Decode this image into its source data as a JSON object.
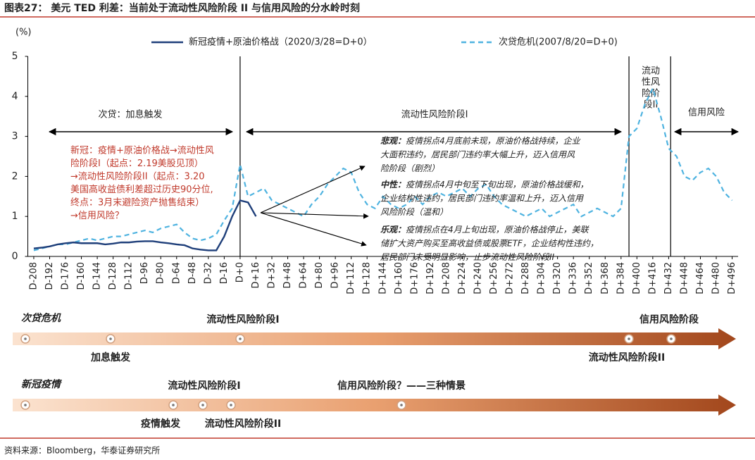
{
  "header": {
    "title": "图表27： 美元 TED 利差：当前处于流动性风险阶段 II 与信用风险的分水岭时刻"
  },
  "chart_data": {
    "type": "line",
    "y_axis_label": "(%)",
    "xlim": [
      -214,
      502
    ],
    "ylim": [
      0,
      5
    ],
    "yticks": [
      0,
      1,
      2,
      3,
      4,
      5
    ],
    "xticks": [
      {
        "value": -208,
        "label": "D-208"
      },
      {
        "value": -192,
        "label": "D-192"
      },
      {
        "value": -176,
        "label": "D-176"
      },
      {
        "value": -160,
        "label": "D-160"
      },
      {
        "value": -144,
        "label": "D-144"
      },
      {
        "value": -128,
        "label": "D-128"
      },
      {
        "value": -112,
        "label": "D-112"
      },
      {
        "value": -96,
        "label": "D-96"
      },
      {
        "value": -80,
        "label": "D-80"
      },
      {
        "value": -64,
        "label": "D-64"
      },
      {
        "value": -48,
        "label": "D-48"
      },
      {
        "value": -32,
        "label": "D-32"
      },
      {
        "value": -16,
        "label": "D-16"
      },
      {
        "value": 0,
        "label": "D+0"
      },
      {
        "value": 16,
        "label": "D+16"
      },
      {
        "value": 32,
        "label": "D+32"
      },
      {
        "value": 48,
        "label": "D+48"
      },
      {
        "value": 64,
        "label": "D+64"
      },
      {
        "value": 80,
        "label": "D+80"
      },
      {
        "value": 96,
        "label": "D+96"
      },
      {
        "value": 112,
        "label": "D+112"
      },
      {
        "value": 128,
        "label": "D+128"
      },
      {
        "value": 144,
        "label": "D+144"
      },
      {
        "value": 160,
        "label": "D+160"
      },
      {
        "value": 176,
        "label": "D+176"
      },
      {
        "value": 192,
        "label": "D+192"
      },
      {
        "value": 208,
        "label": "D+208"
      },
      {
        "value": 224,
        "label": "D+224"
      },
      {
        "value": 240,
        "label": "D+240"
      },
      {
        "value": 256,
        "label": "D+256"
      },
      {
        "value": 272,
        "label": "D+272"
      },
      {
        "value": 288,
        "label": "D+288"
      },
      {
        "value": 304,
        "label": "D+304"
      },
      {
        "value": 320,
        "label": "D+320"
      },
      {
        "value": 336,
        "label": "D+336"
      },
      {
        "value": 352,
        "label": "D+352"
      },
      {
        "value": 368,
        "label": "D+368"
      },
      {
        "value": 384,
        "label": "D+384"
      },
      {
        "value": 400,
        "label": "D+400"
      },
      {
        "value": 416,
        "label": "D+416"
      },
      {
        "value": 432,
        "label": "D+432"
      },
      {
        "value": 448,
        "label": "D+448"
      },
      {
        "value": 464,
        "label": "D+464"
      },
      {
        "value": 480,
        "label": "D+480"
      },
      {
        "value": 496,
        "label": "D+496"
      }
    ],
    "series": [
      {
        "name": "新冠疫情+原油价格战（2020/3/28=D+0）",
        "color": "#1f3f7a",
        "dashed": false,
        "x": [
          -208,
          -200,
          -192,
          -184,
          -176,
          -168,
          -160,
          -152,
          -144,
          -136,
          -128,
          -120,
          -112,
          -104,
          -96,
          -88,
          -80,
          -72,
          -64,
          -56,
          -48,
          -40,
          -32,
          -24,
          -16,
          -8,
          0,
          8,
          16
        ],
        "values": [
          0.2,
          0.22,
          0.25,
          0.3,
          0.33,
          0.35,
          0.33,
          0.33,
          0.33,
          0.3,
          0.32,
          0.35,
          0.35,
          0.37,
          0.38,
          0.38,
          0.35,
          0.33,
          0.3,
          0.28,
          0.2,
          0.17,
          0.15,
          0.15,
          0.5,
          1.0,
          1.4,
          1.35,
          1.0
        ]
      },
      {
        "name": "次贷危机(2007/8/20=D+0)",
        "color": "#4fb3e0",
        "dashed": true,
        "x": [
          -208,
          -200,
          -192,
          -184,
          -176,
          -168,
          -160,
          -152,
          -144,
          -136,
          -128,
          -120,
          -112,
          -104,
          -96,
          -88,
          -80,
          -72,
          -64,
          -56,
          -48,
          -40,
          -32,
          -24,
          -16,
          -8,
          0,
          8,
          16,
          24,
          32,
          40,
          48,
          56,
          64,
          72,
          80,
          88,
          96,
          104,
          112,
          120,
          128,
          136,
          144,
          152,
          160,
          168,
          176,
          184,
          192,
          200,
          208,
          216,
          224,
          232,
          240,
          248,
          256,
          264,
          272,
          280,
          288,
          296,
          304,
          312,
          320,
          328,
          336,
          344,
          352,
          360,
          368,
          376,
          384,
          392,
          400,
          408,
          416,
          424,
          432,
          440,
          448,
          456,
          464,
          472,
          480,
          488,
          496
        ],
        "values": [
          0.15,
          0.2,
          0.25,
          0.3,
          0.3,
          0.35,
          0.4,
          0.45,
          0.4,
          0.45,
          0.5,
          0.5,
          0.55,
          0.6,
          0.65,
          0.6,
          0.7,
          0.75,
          0.8,
          0.6,
          0.45,
          0.4,
          0.45,
          0.55,
          0.9,
          1.2,
          2.3,
          1.5,
          1.6,
          1.7,
          1.4,
          1.3,
          1.2,
          1.1,
          1.0,
          1.3,
          1.5,
          1.8,
          2.0,
          2.2,
          2.1,
          1.6,
          1.3,
          1.2,
          1.5,
          1.3,
          1.2,
          1.3,
          1.5,
          1.3,
          1.5,
          1.6,
          1.5,
          1.6,
          1.7,
          1.5,
          1.7,
          1.8,
          1.5,
          1.3,
          1.2,
          1.1,
          1.0,
          1.1,
          1.2,
          1.0,
          1.1,
          1.2,
          1.3,
          1.0,
          1.1,
          1.2,
          1.1,
          1.0,
          1.2,
          3.0,
          3.2,
          3.8,
          4.2,
          3.5,
          2.7,
          2.5,
          2.0,
          1.9,
          2.1,
          2.2,
          2.0,
          1.6,
          1.4
        ]
      }
    ],
    "phase_lines": [
      0,
      392,
      434
    ],
    "phases": [
      {
        "label": [
          "次贷：加息触发"
        ]
      },
      {
        "label": [
          "流动性风险阶段I"
        ]
      },
      {
        "label": [
          "流动",
          "性风",
          "险阶",
          "段II"
        ]
      },
      {
        "label": [
          "信用风险"
        ]
      }
    ],
    "covid_note": [
      "新冠：疫情+原油价格战→流动性风",
      "险阶段I（起点：2.19美股见顶）",
      "→流动性风险阶段II（起点：3.20",
      "美国高收益债利差超过历史90分位,",
      "终点：3月末避险资产抛售结束）",
      "→信用风险？"
    ],
    "scenarios": [
      {
        "label": "悲观：",
        "lines": [
          "疫情拐点4月底前未现，原油价格战持续，企业",
          "大面积违约，居民部门违约率大幅上升，迈入信用风",
          "险阶段（剧烈）"
        ]
      },
      {
        "label": "中性：",
        "lines": [
          "疫情拐点4月中旬至下旬出现，原油价格战缓和，",
          "企业结构性违约，居民部门违约率温和上升，迈入信用",
          "风险阶段（温和）"
        ]
      },
      {
        "label": "乐观：",
        "lines": [
          "疫情拐点在4月上旬出现，原油价格战停止，美联",
          "储扩大资产购买至高收益债或股票ETF，企业结构性违约，",
          "居民部门未受明显影响，止步流动性风险阶段II"
        ]
      }
    ]
  },
  "timelines": [
    {
      "title": "次贷危机",
      "events": [
        "加息触发",
        "流动性风险阶段I",
        "流动性风险阶段II",
        "信用风险阶段"
      ]
    },
    {
      "title": "新冠疫情",
      "events": [
        "疫情触发",
        "流动性风险阶段I",
        "流动性风险阶段II",
        "信用风险阶段？——三种情景"
      ]
    }
  ],
  "source": "资料来源：Bloomberg，华泰证券研究所"
}
